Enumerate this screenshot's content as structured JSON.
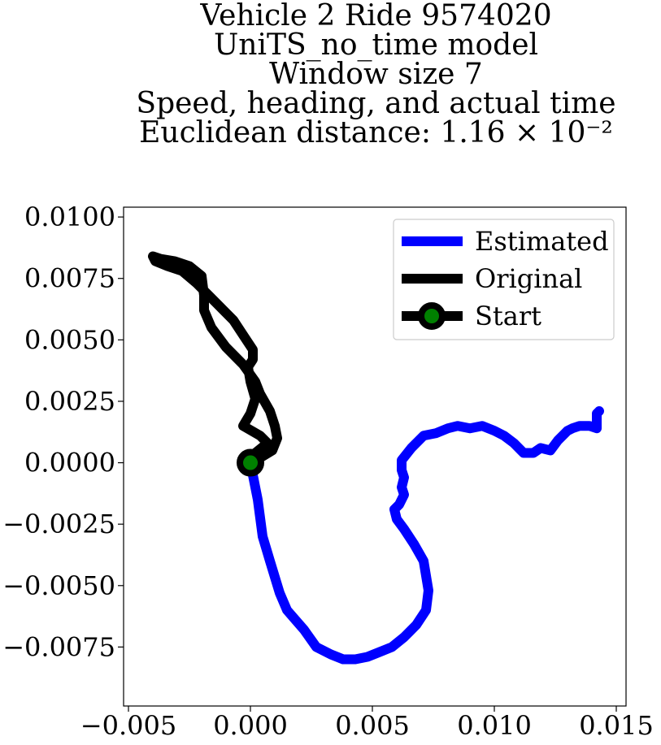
{
  "chart_data": {
    "type": "line",
    "title_lines": [
      "Vehicle 2 Ride 9574020",
      "UniTS_no_time model",
      "Window size 7",
      "Speed, heading, and actual time",
      "Euclidean distance: 1.16 × 10⁻²"
    ],
    "xlabel": "",
    "ylabel": "",
    "xlim": [
      -0.0052,
      0.0154
    ],
    "ylim": [
      -0.0099,
      0.0104
    ],
    "x_ticks": [
      -0.005,
      0.0,
      0.005,
      0.01,
      0.015
    ],
    "x_tick_labels": [
      "−0.005",
      "0.000",
      "0.005",
      "0.010",
      "0.015"
    ],
    "y_ticks": [
      0.01,
      0.0075,
      0.005,
      0.0025,
      0.0,
      -0.0025,
      -0.005,
      -0.0075
    ],
    "y_tick_labels": [
      "0.0100",
      "0.0075",
      "0.0050",
      "0.0025",
      "0.0000",
      "−0.0025",
      "−0.0050",
      "−0.0075"
    ],
    "grid": false,
    "legend_position": "top-right",
    "series": [
      {
        "name": "Estimated",
        "color": "#0000ff",
        "points": [
          [
            0.0,
            0.0
          ],
          [
            0.0003,
            -0.0015
          ],
          [
            0.0005,
            -0.003
          ],
          [
            0.0008,
            -0.004
          ],
          [
            0.0012,
            -0.0053
          ],
          [
            0.0015,
            -0.006
          ],
          [
            0.0022,
            -0.0068
          ],
          [
            0.0027,
            -0.0075
          ],
          [
            0.0033,
            -0.0078
          ],
          [
            0.0038,
            -0.008
          ],
          [
            0.0043,
            -0.008
          ],
          [
            0.0048,
            -0.0079
          ],
          [
            0.0053,
            -0.0077
          ],
          [
            0.0058,
            -0.0075
          ],
          [
            0.0063,
            -0.0071
          ],
          [
            0.0068,
            -0.0066
          ],
          [
            0.0072,
            -0.006
          ],
          [
            0.0073,
            -0.0052
          ],
          [
            0.0071,
            -0.004
          ],
          [
            0.0067,
            -0.0033
          ],
          [
            0.0063,
            -0.0027
          ],
          [
            0.006,
            -0.0023
          ],
          [
            0.0059,
            -0.0019
          ],
          [
            0.0061,
            -0.0017
          ],
          [
            0.0063,
            -0.0013
          ],
          [
            0.0062,
            -0.001
          ],
          [
            0.0063,
            -0.0006
          ],
          [
            0.0062,
            -0.0003
          ],
          [
            0.0062,
            0.0001
          ],
          [
            0.0066,
            0.0006
          ],
          [
            0.0071,
            0.0011
          ],
          [
            0.0076,
            0.0012
          ],
          [
            0.0081,
            0.0014
          ],
          [
            0.0085,
            0.0015
          ],
          [
            0.009,
            0.0014
          ],
          [
            0.0095,
            0.0015
          ],
          [
            0.01,
            0.0013
          ],
          [
            0.0104,
            0.0011
          ],
          [
            0.0108,
            0.0008
          ],
          [
            0.0112,
            0.0004
          ],
          [
            0.0116,
            0.0004
          ],
          [
            0.0119,
            0.0006
          ],
          [
            0.0123,
            0.0005
          ],
          [
            0.0126,
            0.0009
          ],
          [
            0.0129,
            0.0012
          ],
          [
            0.013,
            0.0013
          ],
          [
            0.0132,
            0.0014
          ],
          [
            0.0135,
            0.0015
          ],
          [
            0.0139,
            0.0015
          ],
          [
            0.0142,
            0.0014
          ],
          [
            0.0142,
            0.0017
          ],
          [
            0.0142,
            0.002
          ],
          [
            0.0143,
            0.0021
          ]
        ]
      },
      {
        "name": "Original",
        "color": "#000000",
        "points": [
          [
            0.0,
            0.0
          ],
          [
            0.0002,
            0.0004
          ],
          [
            0.0007,
            0.0008
          ],
          [
            0.0004,
            0.0011
          ],
          [
            -0.0003,
            0.0015
          ],
          [
            0.0,
            0.002
          ],
          [
            0.0002,
            0.0026
          ],
          [
            0.0,
            0.0033
          ],
          [
            -0.0001,
            0.0039
          ],
          [
            0.0001,
            0.0042
          ],
          [
            0.0001,
            0.0046
          ],
          [
            -0.0003,
            0.0052
          ],
          [
            -0.0007,
            0.0058
          ],
          [
            -0.0012,
            0.0063
          ],
          [
            -0.0017,
            0.0068
          ],
          [
            -0.0022,
            0.0073
          ],
          [
            -0.0028,
            0.0078
          ],
          [
            -0.0034,
            0.008
          ],
          [
            -0.0039,
            0.0082
          ],
          [
            -0.004,
            0.0084
          ],
          [
            -0.0037,
            0.0083
          ],
          [
            -0.0031,
            0.0082
          ],
          [
            -0.0025,
            0.008
          ],
          [
            -0.002,
            0.0076
          ],
          [
            -0.0019,
            0.0068
          ],
          [
            -0.0019,
            0.0062
          ],
          [
            -0.0016,
            0.0055
          ],
          [
            -0.001,
            0.0047
          ],
          [
            -0.0003,
            0.004
          ],
          [
            0.0002,
            0.0033
          ],
          [
            0.0004,
            0.0028
          ],
          [
            0.0008,
            0.0021
          ],
          [
            0.001,
            0.0015
          ],
          [
            0.0011,
            0.001
          ],
          [
            0.0009,
            0.0005
          ],
          [
            0.0004,
            0.0002
          ],
          [
            0.0,
            0.0
          ]
        ]
      }
    ],
    "start_point": {
      "name": "Start",
      "x": 0.0,
      "y": 0.0,
      "outer_color": "#000000",
      "inner_color": "#008000"
    }
  }
}
